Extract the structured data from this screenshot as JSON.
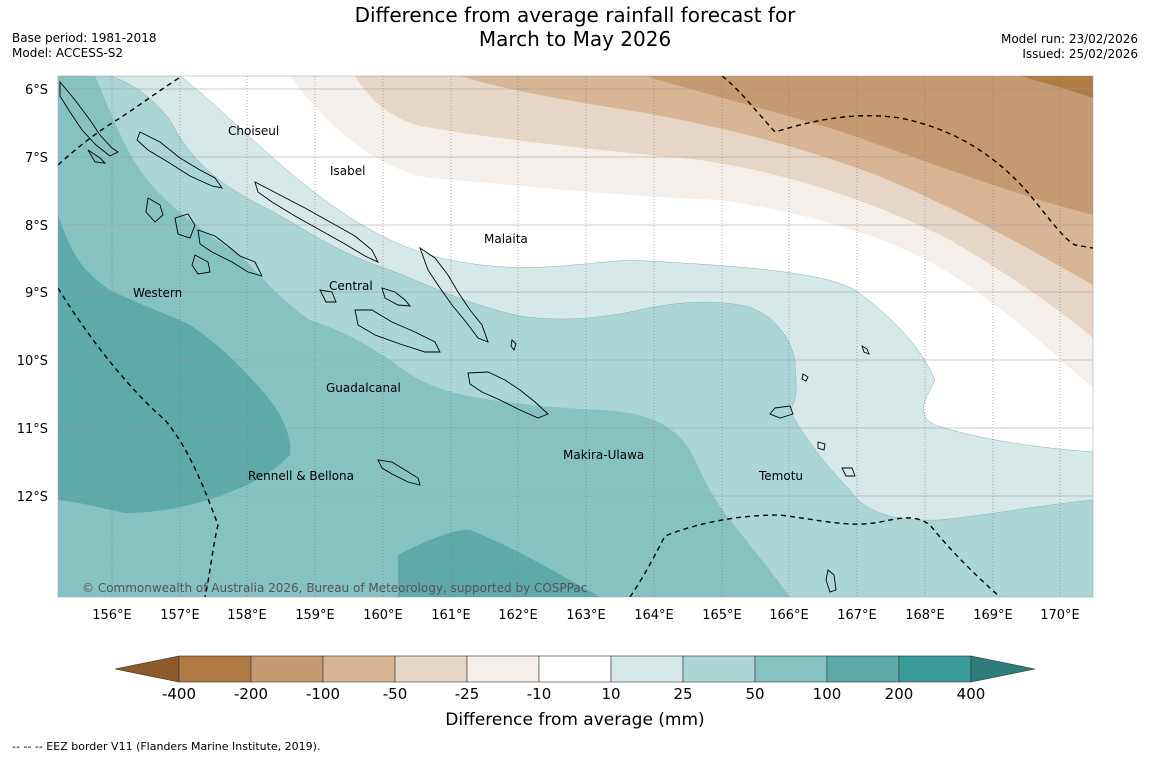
{
  "title_line1": "Difference from average rainfall forecast for",
  "title_line2": "March to May 2026",
  "meta_left": [
    "Base period: 1981-2018",
    "Model: ACCESS-S2"
  ],
  "meta_right": [
    "Model run: 23/02/2026",
    "Issued: 25/02/2026"
  ],
  "copyright": "© Commonwealth of Australia 2026, Bureau of Meteorology, supported by COSPPac",
  "lat_labels": [
    "6°S",
    "7°S",
    "8°S",
    "9°S",
    "10°S",
    "11°S",
    "12°S"
  ],
  "lon_labels": [
    "156°E",
    "157°E",
    "158°E",
    "159°E",
    "160°E",
    "161°E",
    "162°E",
    "163°E",
    "164°E",
    "165°E",
    "166°E",
    "167°E",
    "168°E",
    "169°E",
    "170°E"
  ],
  "regions": [
    "Choiseul",
    "Isabel",
    "Malaita",
    "Western",
    "Central",
    "Guadalcanal",
    "Makira-Ulawa",
    "Rennell & Bellona",
    "Temotu"
  ],
  "colorbar": {
    "ticks": [
      "-400",
      "-200",
      "-100",
      "-50",
      "-25",
      "-10",
      "10",
      "25",
      "50",
      "100",
      "200",
      "400"
    ],
    "colors": [
      "#8c5a2c",
      "#b07a45",
      "#c69a70",
      "#d8b595",
      "#e7d5c5",
      "#f4efea",
      "#ffffff",
      "#d5e9e9",
      "#acd5d5",
      "#86c2c2",
      "#5eaaaa",
      "#3a9b9b",
      "#2e7c7c"
    ],
    "title": "Difference from average (mm)"
  },
  "footer": "--  --  -- EEZ border V11 (Flanders Marine Institute, 2019)."
}
